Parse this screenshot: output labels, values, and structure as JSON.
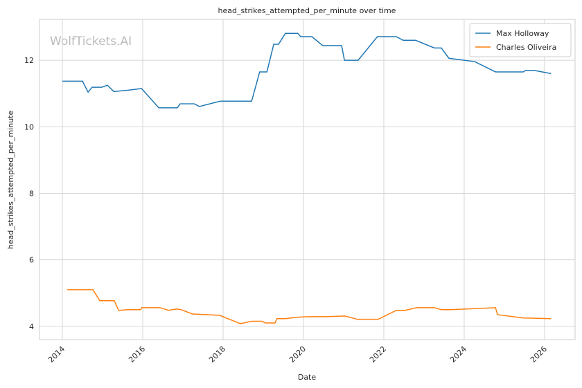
{
  "chart_data": {
    "type": "line",
    "title": "head_strikes_attempted_per_minute over time",
    "xlabel": "Date",
    "ylabel": "head_strikes_attempted_per_minute",
    "watermark": "WolfTickets.AI",
    "xlim": [
      2013.43,
      2026.76
    ],
    "xticks": [
      2014,
      2016,
      2018,
      2020,
      2022,
      2024,
      2026
    ],
    "ylim": [
      3.6,
      13.23
    ],
    "yticks": [
      4,
      6,
      8,
      10,
      12
    ],
    "grid": true,
    "legend": "upper right",
    "series": [
      {
        "name": "Max Holloway",
        "color": "#1f77b4",
        "x": [
          2014.0,
          2014.5,
          2014.64,
          2014.74,
          2014.98,
          2015.12,
          2015.28,
          2015.64,
          2015.97,
          2016.4,
          2016.86,
          2016.93,
          2017.28,
          2017.41,
          2017.93,
          2018.71,
          2018.91,
          2019.09,
          2019.26,
          2019.38,
          2019.55,
          2019.86,
          2019.93,
          2020.21,
          2020.48,
          2020.95,
          2021.02,
          2021.36,
          2021.84,
          2022.31,
          2022.48,
          2022.79,
          2023.26,
          2023.43,
          2023.62,
          2024.26,
          2024.78,
          2025.47,
          2025.52,
          2025.76,
          2026.16
        ],
        "values": [
          11.37,
          11.37,
          11.04,
          11.19,
          11.19,
          11.25,
          11.06,
          11.1,
          11.15,
          10.57,
          10.57,
          10.69,
          10.69,
          10.61,
          10.77,
          10.77,
          11.65,
          11.65,
          12.48,
          12.48,
          12.81,
          12.81,
          12.71,
          12.71,
          12.44,
          12.44,
          12.0,
          12.0,
          12.71,
          12.71,
          12.6,
          12.6,
          12.37,
          12.37,
          12.06,
          11.96,
          11.65,
          11.65,
          11.69,
          11.69,
          11.6
        ]
      },
      {
        "name": "Charles Oliveira",
        "color": "#ff7f0e",
        "x": [
          2014.12,
          2014.76,
          2014.93,
          2015.29,
          2015.4,
          2015.64,
          2015.95,
          2015.97,
          2016.43,
          2016.64,
          2016.84,
          2016.95,
          2017.24,
          2017.62,
          2017.91,
          2018.43,
          2018.71,
          2018.97,
          2019.05,
          2019.29,
          2019.34,
          2019.55,
          2019.83,
          2020.12,
          2020.57,
          2021.03,
          2021.34,
          2021.86,
          2022.31,
          2022.53,
          2022.81,
          2023.26,
          2023.43,
          2023.66,
          2024.78,
          2024.83,
          2025.47,
          2026.16
        ],
        "values": [
          5.1,
          5.1,
          4.77,
          4.77,
          4.48,
          4.5,
          4.5,
          4.56,
          4.56,
          4.48,
          4.52,
          4.5,
          4.37,
          4.35,
          4.33,
          4.08,
          4.15,
          4.15,
          4.1,
          4.1,
          4.23,
          4.23,
          4.27,
          4.29,
          4.29,
          4.31,
          4.21,
          4.21,
          4.48,
          4.48,
          4.56,
          4.56,
          4.5,
          4.5,
          4.56,
          4.35,
          4.25,
          4.23
        ]
      }
    ]
  }
}
